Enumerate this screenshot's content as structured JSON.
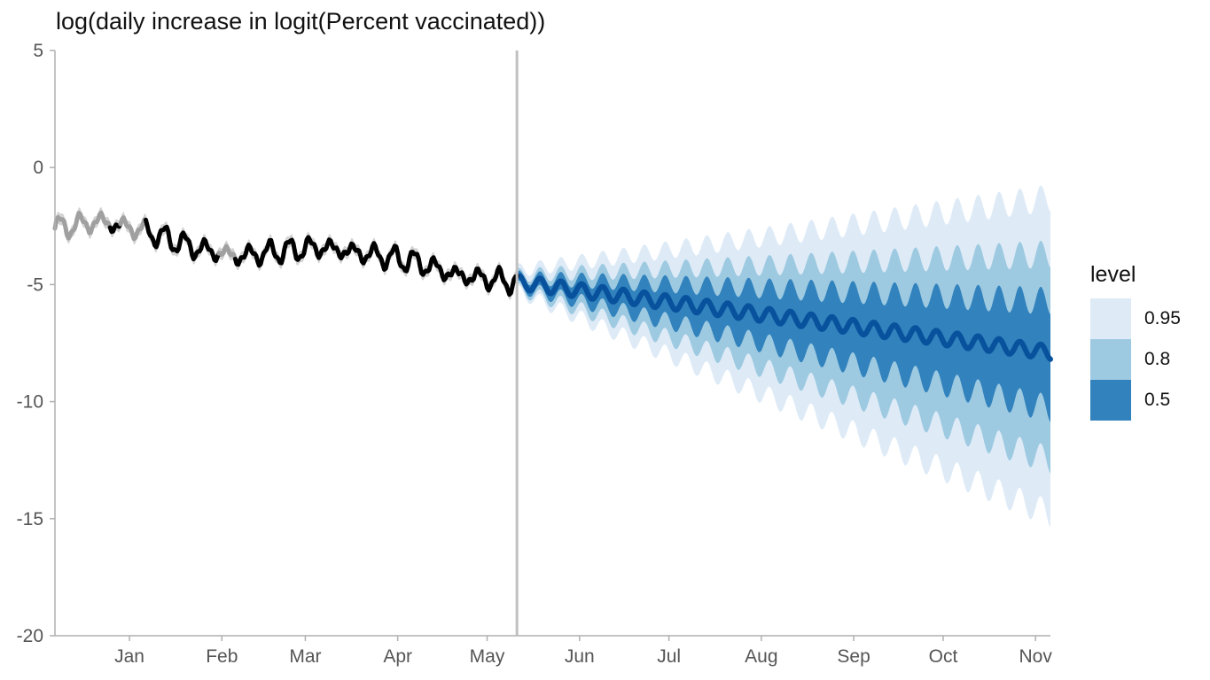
{
  "chart_data": {
    "type": "area",
    "title": "log(daily increase in logit(Percent vaccinated))",
    "xlabel": "",
    "ylabel": "",
    "ylim": [
      -20,
      5
    ],
    "y_ticks": [
      5,
      0,
      -5,
      -10,
      -15,
      -20
    ],
    "y_tick_labels": [
      "5",
      "0",
      "-5",
      "-10",
      "-15",
      "-20"
    ],
    "x_ticks": [
      "Jan",
      "Feb",
      "Mar",
      "Apr",
      "May",
      "Jun",
      "Jul",
      "Aug",
      "Sep",
      "Oct",
      "Nov"
    ],
    "x_range": [
      "2020-12-21",
      "2021-11-20"
    ],
    "forecast_start": "2021-05-25",
    "grid": false,
    "legend": {
      "title": "level",
      "placement": "right",
      "entries": [
        {
          "label": "0.95",
          "color": "#deebf7"
        },
        {
          "label": "0.8",
          "color": "#9ecae1"
        },
        {
          "label": "0.5",
          "color": "#3182bd"
        }
      ]
    },
    "colors": {
      "observed": "#000000",
      "observed_uncertain": "#a0a0a0",
      "observed_band": "#d3d3d3",
      "forecast_median": "#08519c",
      "forecast_start_line": "#c0c0c0"
    },
    "observed_series": {
      "name": "",
      "weekly_oscillation": 0.35,
      "trend_points": [
        {
          "x": "2020-12-21",
          "y": -2.6
        },
        {
          "x": "2021-01-05",
          "y": -2.3
        },
        {
          "x": "2021-01-20",
          "y": -2.7
        },
        {
          "x": "2021-02-05",
          "y": -3.4
        },
        {
          "x": "2021-02-20",
          "y": -3.8
        },
        {
          "x": "2021-03-05",
          "y": -3.6
        },
        {
          "x": "2021-03-20",
          "y": -3.4
        },
        {
          "x": "2021-04-05",
          "y": -3.7
        },
        {
          "x": "2021-04-20",
          "y": -4.0
        },
        {
          "x": "2021-05-05",
          "y": -4.6
        },
        {
          "x": "2021-05-25",
          "y": -4.9
        }
      ],
      "uncertain_spans": [
        [
          "2020-12-21",
          "2021-01-08"
        ],
        [
          "2021-01-12",
          "2021-01-20"
        ],
        [
          "2021-02-14",
          "2021-02-19"
        ]
      ]
    },
    "forecast": {
      "weekly_oscillation": 0.3,
      "median": [
        {
          "x": "2021-05-25",
          "y": -4.9
        },
        {
          "x": "2021-11-20",
          "y": -7.9
        }
      ],
      "bands": [
        {
          "level": "0.95",
          "lower": [
            -5.3,
            -14.8
          ],
          "upper": [
            -4.4,
            -1.3
          ]
        },
        {
          "level": "0.8",
          "lower": [
            -5.2,
            -12.5
          ],
          "upper": [
            -4.6,
            -3.7
          ]
        },
        {
          "level": "0.5",
          "lower": [
            -5.1,
            -10.3
          ],
          "upper": [
            -4.7,
            -5.7
          ]
        }
      ]
    }
  }
}
